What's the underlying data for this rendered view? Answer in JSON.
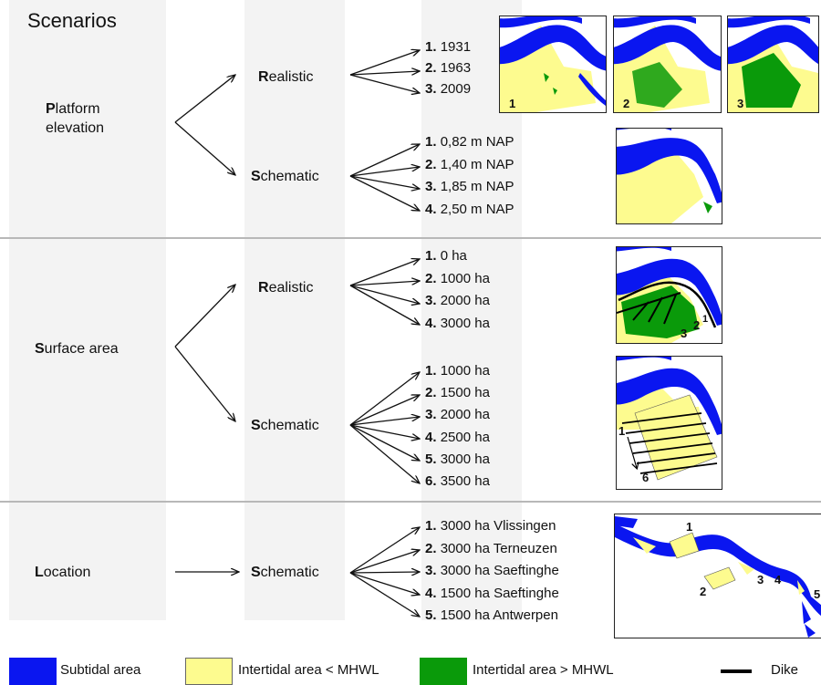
{
  "title": "Scenarios",
  "colors": {
    "subtidal": "#0a16f0",
    "intertidal_low": "#fdfb8f",
    "intertidal_high": "#0a9a0a",
    "dike": "#000000"
  },
  "sections": {
    "platform": {
      "head_initial": "P",
      "head_rest": "latform",
      "head_line2": "elevation",
      "realistic": {
        "initial": "R",
        "rest": "ealistic",
        "items": [
          {
            "n": "1.",
            "t": "1931"
          },
          {
            "n": "2.",
            "t": "1963"
          },
          {
            "n": "3.",
            "t": "2009"
          }
        ],
        "map_numbers": [
          "1",
          "2",
          "3"
        ]
      },
      "schematic": {
        "initial": "S",
        "rest": "chematic",
        "items": [
          {
            "n": "1.",
            "t": "0,82 m NAP"
          },
          {
            "n": "2.",
            "t": "1,40 m NAP"
          },
          {
            "n": "3.",
            "t": "1,85 m NAP"
          },
          {
            "n": "4.",
            "t": "2,50 m NAP"
          }
        ]
      }
    },
    "surface": {
      "head_initial": "S",
      "head_rest": "urface area",
      "realistic": {
        "initial": "R",
        "rest": "ealistic",
        "items": [
          {
            "n": "1.",
            "t": "0 ha"
          },
          {
            "n": "2.",
            "t": "1000 ha"
          },
          {
            "n": "3.",
            "t": "2000 ha"
          },
          {
            "n": "4.",
            "t": "3000 ha"
          }
        ],
        "map_numbers": [
          "3",
          "2",
          "1"
        ]
      },
      "schematic": {
        "initial": "S",
        "rest": "chematic",
        "items": [
          {
            "n": "1.",
            "t": "1000 ha"
          },
          {
            "n": "2.",
            "t": "1500 ha"
          },
          {
            "n": "3.",
            "t": "2000 ha"
          },
          {
            "n": "4.",
            "t": "2500 ha"
          },
          {
            "n": "5.",
            "t": "3000 ha"
          },
          {
            "n": "6.",
            "t": "3500 ha"
          }
        ],
        "map_numbers": [
          "1",
          "6"
        ]
      }
    },
    "location": {
      "head_initial": "L",
      "head_rest": "ocation",
      "schematic": {
        "initial": "S",
        "rest": "chematic",
        "items": [
          {
            "n": "1.",
            "t": "3000 ha Vlissingen"
          },
          {
            "n": "2.",
            "t": "3000 ha Terneuzen"
          },
          {
            "n": "3.",
            "t": "3000 ha Saeftinghe"
          },
          {
            "n": "4.",
            "t": "1500 ha Saeftinghe"
          },
          {
            "n": "5.",
            "t": "1500 ha Antwerpen"
          }
        ],
        "map_numbers": [
          "1",
          "2",
          "3",
          "4",
          "5"
        ]
      }
    }
  },
  "legend": {
    "subtidal": "Subtidal area",
    "intertidal_low": "Intertidal area < MHWL",
    "intertidal_high": "Intertidal area > MHWL",
    "dike": "Dike"
  }
}
